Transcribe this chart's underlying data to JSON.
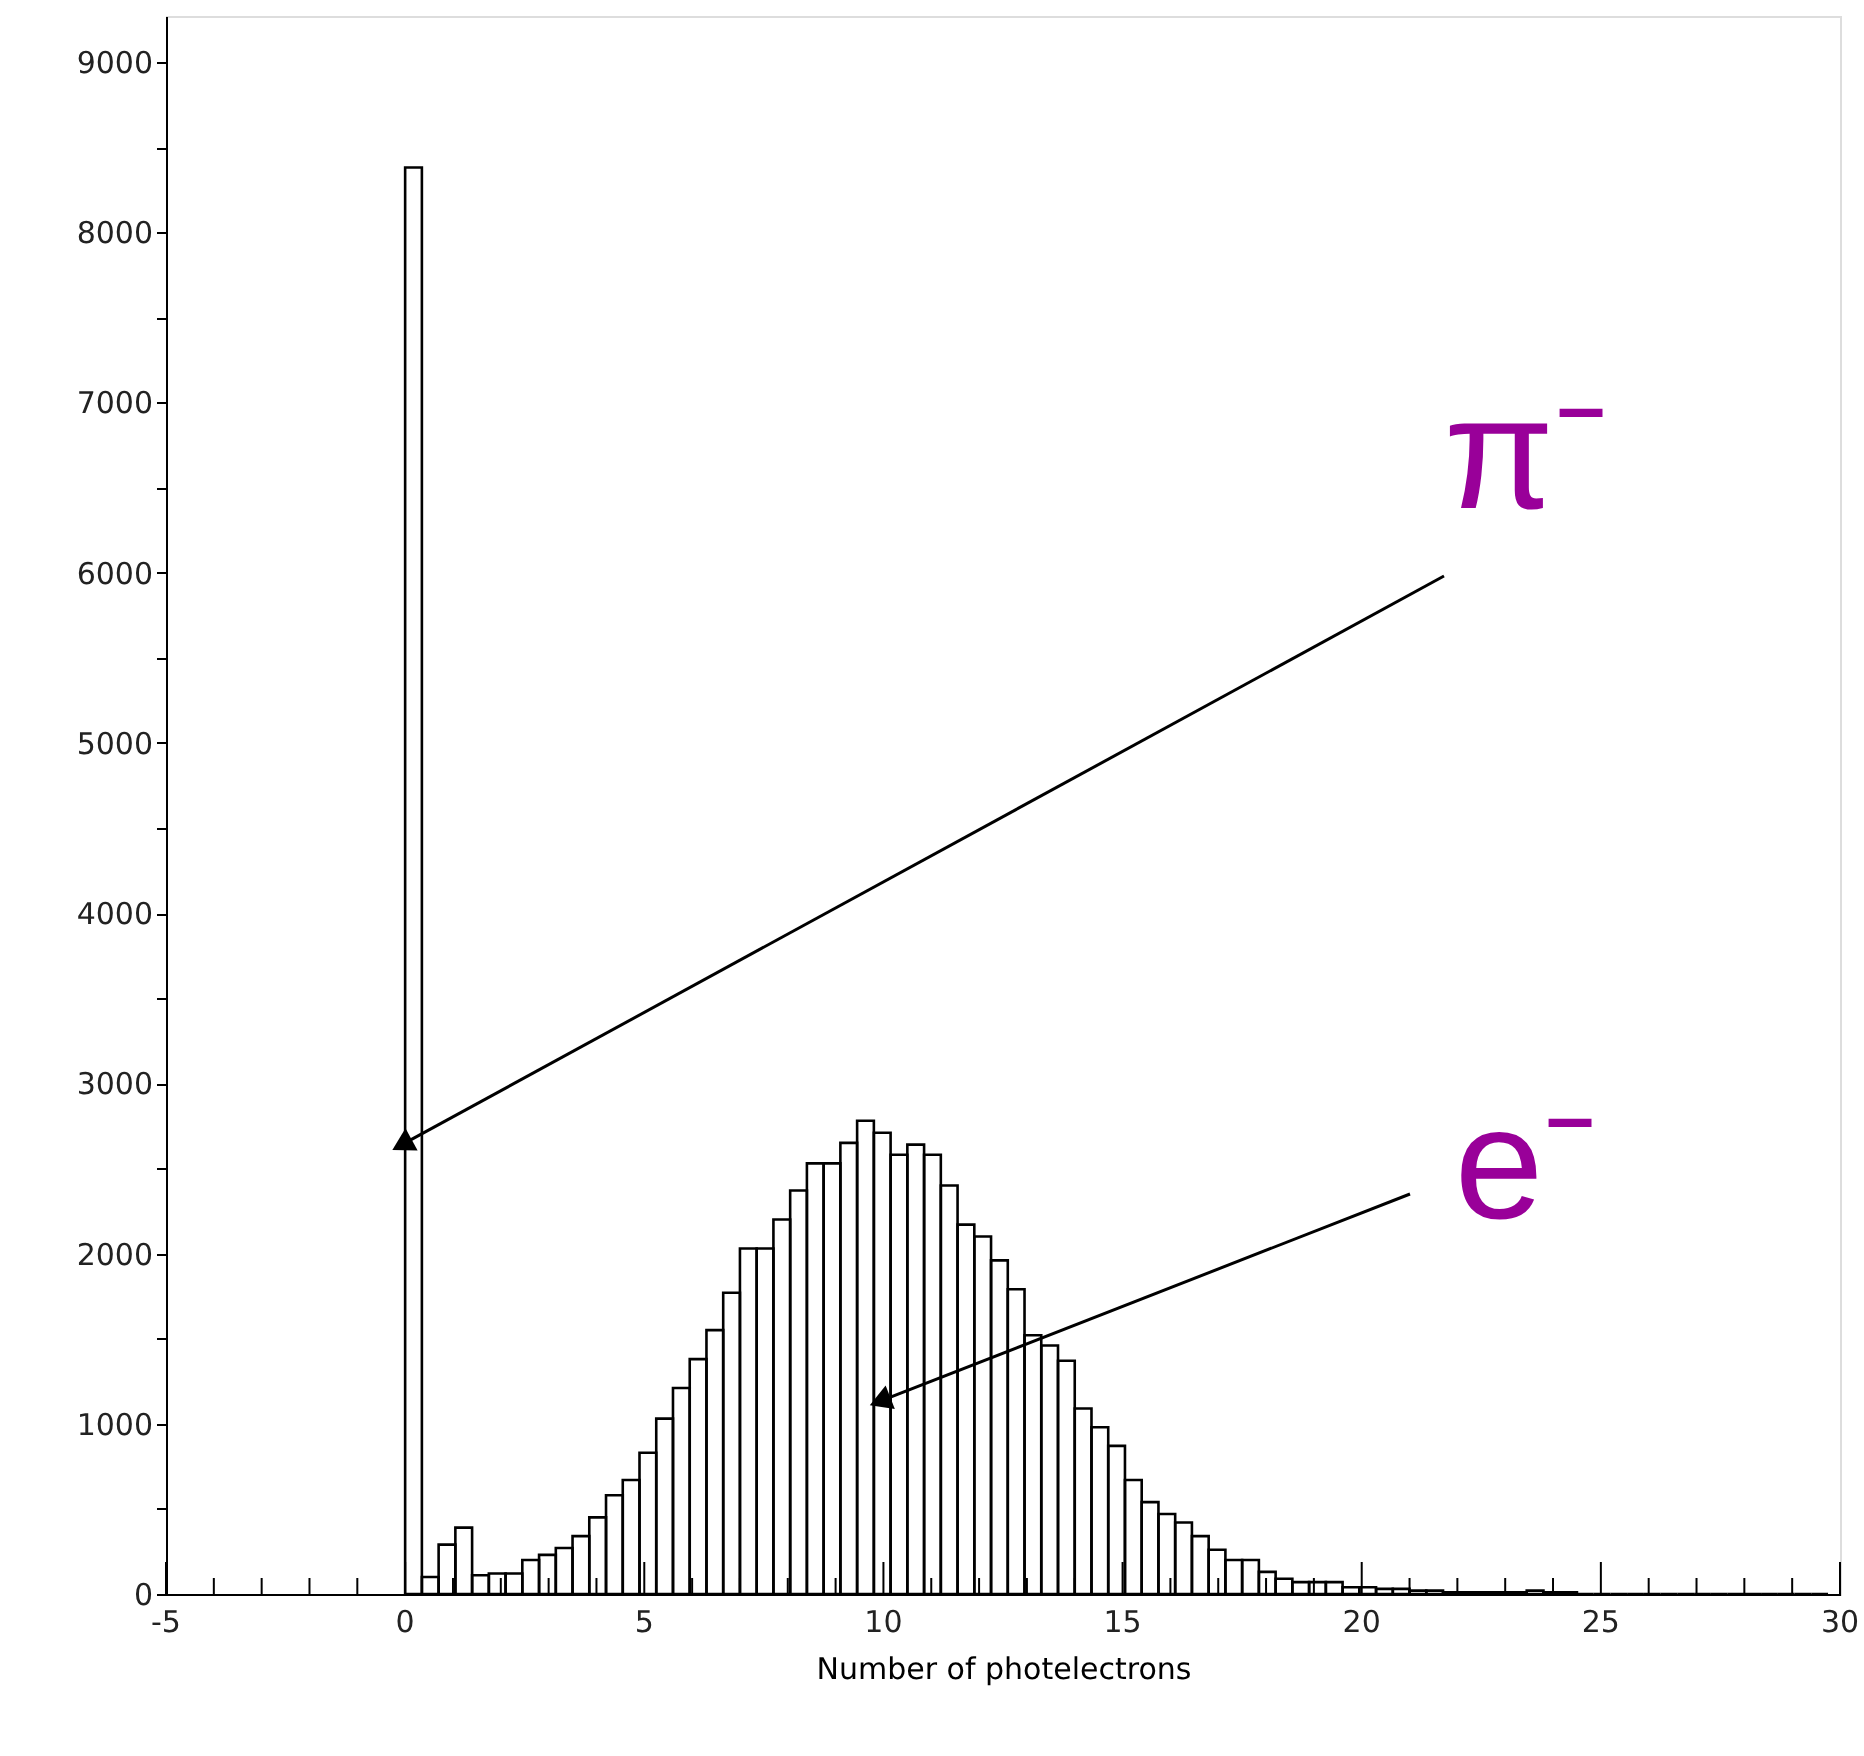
{
  "chart_data": {
    "type": "histogram",
    "xlabel": "Number of photelectrons",
    "bins": [
      0,
      0.35,
      0.7,
      1.05,
      1.4,
      1.75,
      2.1,
      2.45,
      2.8,
      3.15,
      3.5,
      3.85,
      4.2,
      4.55,
      4.9,
      5.25,
      5.6,
      5.95,
      6.3,
      6.65,
      7.0,
      7.35,
      7.7,
      8.05,
      8.4,
      8.75,
      9.1,
      9.45,
      9.8,
      10.15,
      10.5,
      10.85,
      11.2,
      11.55,
      11.9,
      12.25,
      12.6,
      12.95,
      13.3,
      13.65,
      14.0,
      14.35,
      14.7,
      15.05,
      15.4,
      15.75,
      16.1,
      16.45,
      16.8,
      17.15,
      17.5,
      17.85,
      18.2,
      18.55,
      18.9,
      19.25,
      19.6,
      19.95,
      20.3,
      20.65,
      21.0,
      21.35,
      21.7,
      22.05,
      22.4,
      22.75,
      23.1,
      23.45,
      23.8,
      24.15,
      24.5,
      24.85,
      25.2,
      25.55,
      25.9,
      26.25,
      26.6,
      26.95,
      27.3,
      27.65,
      28.0,
      28.35,
      28.7,
      29.05,
      29.4,
      29.75
    ],
    "values": [
      8380,
      100,
      290,
      390,
      110,
      120,
      120,
      200,
      230,
      270,
      340,
      450,
      580,
      670,
      830,
      1030,
      1210,
      1380,
      1550,
      1770,
      2030,
      2030,
      2200,
      2370,
      2530,
      2530,
      2650,
      2780,
      2710,
      2580,
      2640,
      2580,
      2400,
      2170,
      2100,
      1960,
      1790,
      1520,
      1460,
      1370,
      1090,
      980,
      870,
      670,
      540,
      470,
      420,
      340,
      260,
      200,
      200,
      130,
      90,
      70,
      70,
      70,
      40,
      40,
      30,
      30,
      20,
      20,
      10,
      10,
      10,
      10,
      10,
      20,
      10,
      10,
      0,
      0,
      0,
      0,
      0,
      0,
      0,
      0,
      0,
      0,
      0,
      0,
      0,
      0,
      0
    ],
    "color": "#000000",
    "xlim": [
      -5,
      30
    ],
    "xticks": [
      -5,
      {
        "value": -4,
        "label": null
      },
      {
        "value": -3,
        "label": null
      },
      {
        "value": -2,
        "label": null
      },
      {
        "value": -1,
        "label": null
      },
      0,
      {
        "value": 1,
        "label": null
      },
      {
        "value": 2,
        "label": null
      },
      {
        "value": 3,
        "label": null
      },
      {
        "value": 4,
        "label": null
      },
      5,
      {
        "value": 6,
        "label": null
      },
      {
        "value": 7,
        "label": null
      },
      {
        "value": 8,
        "label": null
      },
      {
        "value": 9,
        "label": null
      },
      10,
      {
        "value": 11,
        "label": null
      },
      {
        "value": 12,
        "label": null
      },
      {
        "value": 13,
        "label": null
      },
      {
        "value": 14,
        "label": null
      },
      15,
      {
        "value": 16,
        "label": null
      },
      {
        "value": 17,
        "label": null
      },
      {
        "value": 18,
        "label": null
      },
      {
        "value": 19,
        "label": null
      },
      20,
      {
        "value": 21,
        "label": null
      },
      {
        "value": 22,
        "label": null
      },
      {
        "value": 23,
        "label": null
      },
      {
        "value": 24,
        "label": null
      },
      25,
      {
        "value": 26,
        "label": null
      },
      {
        "value": 27,
        "label": null
      },
      {
        "value": 28,
        "label": null
      },
      {
        "value": 29,
        "label": null
      },
      30
    ],
    "ylim": [
      0,
      9270
    ],
    "yticks": [
      0,
      {
        "value": 500,
        "label": null
      },
      1000,
      {
        "value": 1500,
        "label": null
      },
      2000,
      {
        "value": 2500,
        "label": null
      },
      3000,
      {
        "value": 3500,
        "label": null
      },
      4000,
      {
        "value": 4500,
        "label": null
      },
      5000,
      {
        "value": 5500,
        "label": null
      },
      6000,
      {
        "value": 6500,
        "label": null
      },
      7000,
      {
        "value": 7500,
        "label": null
      },
      8000,
      {
        "value": 8500,
        "label": null
      },
      9000
    ],
    "grid": false,
    "annotations": [
      {
        "text": "π⁻",
        "x": 0,
        "y": 2650
      },
      {
        "text": "e⁻",
        "x": 10,
        "y": 1140
      }
    ]
  }
}
